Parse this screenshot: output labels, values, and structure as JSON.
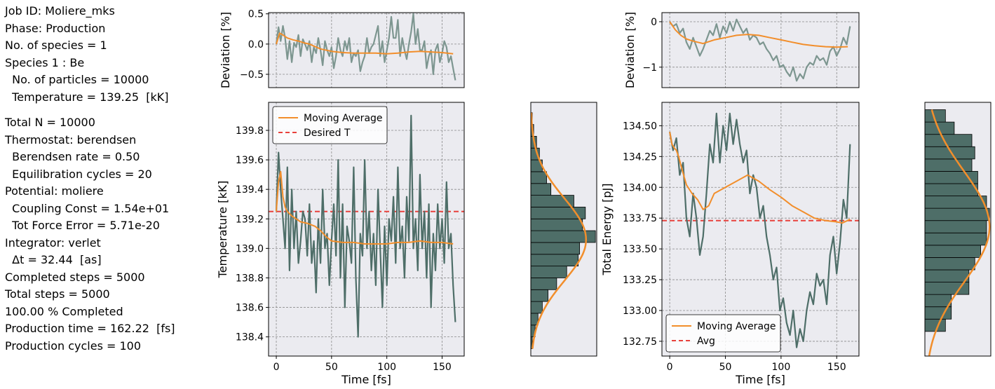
{
  "info_panel": {
    "group1": [
      "Job ID: Moliere_mks",
      "Phase: Production",
      "No. of species = 1",
      "Species 1 : Be",
      "  No. of particles = 10000",
      "  Temperature = 139.25  [kK]"
    ],
    "group2": [
      "Total N = 10000",
      "Thermostat: berendsen",
      "  Berendsen rate = 0.50",
      "  Equilibration cycles = 20",
      "Potential: moliere",
      "  Coupling Const = 1.54e+01",
      "  Tot Force Error = 5.71e-20",
      "Integrator: verlet",
      "  Δt = 32.44  [as]",
      "Completed steps = 5000",
      "Total steps = 5000",
      "100.00 % Completed",
      "Production time = 162.22  [fs]",
      "Production cycles = 100"
    ]
  },
  "colors": {
    "signal": "#4e6e68",
    "deviation_signal": "#7d9690",
    "moving_average": "#f28e2b",
    "reference_line": "#e8413c",
    "panel_background": "#ebebf0",
    "grid": "#8a8a8a"
  },
  "chart_data": [
    {
      "id": "temp_deviation",
      "type": "line",
      "ylabel": "Deviation [%]",
      "xlabel": "",
      "xlim": [
        -7,
        170
      ],
      "ylim": [
        -0.72,
        0.52
      ],
      "yticks": [
        0.5,
        0.0,
        -0.5
      ],
      "ytick_labels": [
        "0.5",
        "0.0",
        "−0.5"
      ],
      "grid": true,
      "series": [
        {
          "role": "signal",
          "x": [
            0,
            2,
            4,
            6,
            8,
            10,
            12,
            14,
            16,
            18,
            20,
            22,
            24,
            26,
            28,
            30,
            32,
            34,
            36,
            38,
            40,
            42,
            44,
            46,
            48,
            50,
            52,
            54,
            56,
            58,
            60,
            62,
            64,
            66,
            68,
            70,
            72,
            74,
            76,
            78,
            80,
            82,
            84,
            86,
            88,
            90,
            92,
            94,
            96,
            98,
            100,
            102,
            104,
            106,
            108,
            110,
            112,
            114,
            116,
            118,
            120,
            122,
            124,
            126,
            128,
            130,
            132,
            134,
            136,
            138,
            140,
            142,
            144,
            146,
            148,
            150,
            152,
            154,
            156,
            158,
            160,
            162
          ],
          "y": [
            0.0,
            0.28,
            0.05,
            0.3,
            0.1,
            -0.25,
            0.05,
            -0.3,
            0.02,
            -0.05,
            0.15,
            -0.2,
            0.08,
            0.0,
            -0.1,
            0.05,
            -0.3,
            -0.05,
            -0.15,
            0.1,
            -0.1,
            -0.35,
            0.05,
            -0.1,
            -0.2,
            -0.05,
            -0.4,
            -0.2,
            0.1,
            -0.1,
            -0.2,
            0.05,
            -0.1,
            0.1,
            -0.3,
            -0.15,
            -0.2,
            -0.1,
            -0.45,
            -0.3,
            -0.2,
            0.1,
            -0.15,
            -0.05,
            0.0,
            0.15,
            0.3,
            -0.2,
            0.05,
            -0.3,
            -0.1,
            0.1,
            0.45,
            0.1,
            0.1,
            0.4,
            -0.2,
            0.1,
            -0.1,
            -0.25,
            0.0,
            0.2,
            0.5,
            0.0,
            0.25,
            -0.1,
            -0.1,
            0.05,
            -0.4,
            -0.2,
            -0.1,
            -0.5,
            -0.1,
            0.0,
            -0.3,
            -0.15,
            0.05,
            -0.05,
            -0.3,
            -0.2,
            -0.4,
            -0.6
          ]
        },
        {
          "role": "moving_average",
          "x": [
            0,
            3,
            6,
            10,
            15,
            20,
            25,
            30,
            40,
            50,
            60,
            70,
            80,
            90,
            100,
            110,
            120,
            130,
            140,
            150,
            160
          ],
          "y": [
            0.0,
            0.18,
            0.15,
            0.1,
            0.07,
            0.05,
            0.02,
            0.0,
            -0.08,
            -0.12,
            -0.14,
            -0.15,
            -0.15,
            -0.15,
            -0.16,
            -0.15,
            -0.13,
            -0.12,
            -0.13,
            -0.14,
            -0.16
          ]
        }
      ]
    },
    {
      "id": "temperature",
      "type": "line",
      "xlabel": "Time [fs]",
      "ylabel": "Temperature [kK]",
      "xlim": [
        -7,
        170
      ],
      "ylim": [
        138.27,
        139.99
      ],
      "xticks": [
        0,
        50,
        100,
        150
      ],
      "yticks": [
        138.4,
        138.6,
        138.8,
        139.0,
        139.2,
        139.4,
        139.6,
        139.8
      ],
      "grid": true,
      "legend": {
        "location": "upper-left",
        "entries": [
          "Moving Average",
          "Desired T"
        ]
      },
      "desired_T": 139.25,
      "series": [
        {
          "role": "signal",
          "x": [
            0,
            2,
            4,
            6,
            8,
            10,
            12,
            14,
            16,
            18,
            20,
            22,
            24,
            26,
            28,
            30,
            32,
            34,
            36,
            38,
            40,
            42,
            44,
            46,
            48,
            50,
            52,
            54,
            56,
            58,
            60,
            62,
            64,
            66,
            68,
            70,
            72,
            74,
            76,
            78,
            80,
            82,
            84,
            86,
            88,
            90,
            92,
            94,
            96,
            98,
            100,
            102,
            104,
            106,
            108,
            110,
            112,
            114,
            116,
            118,
            120,
            122,
            124,
            126,
            128,
            130,
            132,
            134,
            136,
            138,
            140,
            142,
            144,
            146,
            148,
            150,
            152,
            154,
            156,
            158,
            160,
            162
          ],
          "y": [
            139.25,
            139.65,
            139.4,
            139.2,
            139.0,
            139.55,
            138.85,
            139.4,
            139.0,
            139.25,
            138.9,
            139.05,
            139.25,
            139.2,
            138.95,
            139.3,
            138.9,
            139.05,
            138.7,
            139.2,
            138.9,
            139.4,
            139.0,
            139.1,
            138.75,
            139.05,
            139.3,
            138.95,
            139.6,
            138.8,
            139.3,
            138.6,
            139.15,
            139.05,
            138.9,
            139.55,
            138.8,
            138.4,
            139.1,
            138.95,
            139.6,
            139.0,
            139.25,
            138.85,
            139.1,
            138.75,
            139.4,
            139.0,
            138.6,
            139.15,
            138.75,
            139.2,
            139.05,
            139.35,
            138.9,
            139.55,
            139.0,
            139.15,
            138.8,
            139.35,
            139.05,
            139.9,
            139.0,
            139.2,
            138.85,
            139.5,
            139.0,
            139.25,
            138.8,
            139.3,
            138.6,
            139.1,
            138.85,
            139.3,
            139.0,
            139.2,
            138.9,
            139.45,
            139.0,
            139.1,
            138.75,
            138.5
          ]
        },
        {
          "role": "moving_average",
          "x": [
            0,
            2,
            4,
            6,
            8,
            10,
            14,
            18,
            22,
            28,
            35,
            40,
            45,
            50,
            60,
            70,
            80,
            90,
            100,
            110,
            120,
            130,
            140,
            150,
            160
          ],
          "y": [
            139.25,
            139.45,
            139.52,
            139.35,
            139.28,
            139.25,
            139.22,
            139.2,
            139.18,
            139.17,
            139.15,
            139.12,
            139.08,
            139.05,
            139.04,
            139.04,
            139.03,
            139.03,
            139.03,
            139.04,
            139.04,
            139.05,
            139.04,
            139.04,
            139.03
          ]
        }
      ]
    },
    {
      "id": "temperature_histogram",
      "type": "bar",
      "orientation": "horizontal",
      "ylim": [
        138.27,
        139.99
      ],
      "bin_edges": [
        138.32,
        138.4,
        138.48,
        138.56,
        138.64,
        138.72,
        138.8,
        138.88,
        138.96,
        139.04,
        139.12,
        139.2,
        139.28,
        139.36,
        139.44,
        139.52,
        139.6,
        139.68,
        139.76,
        139.84,
        139.92
      ],
      "values": [
        1,
        3,
        5,
        8,
        12,
        18,
        25,
        33,
        34,
        45,
        36,
        38,
        30,
        14,
        11,
        8,
        6,
        4,
        2,
        1
      ],
      "fit": {
        "type": "gaussian",
        "mean": 139.06,
        "std": 0.28,
        "peak": 38.5
      }
    },
    {
      "id": "energy_deviation",
      "type": "line",
      "ylabel": "Deviation [%]",
      "xlabel": "",
      "xlim": [
        -7,
        170
      ],
      "ylim": [
        -1.45,
        0.2
      ],
      "yticks": [
        0,
        -1
      ],
      "ytick_labels": [
        "0",
        "−1"
      ],
      "grid": true,
      "series": [
        {
          "role": "signal",
          "x": [
            0,
            3,
            6,
            9,
            12,
            15,
            18,
            21,
            24,
            27,
            30,
            33,
            36,
            39,
            42,
            45,
            48,
            51,
            54,
            57,
            60,
            63,
            66,
            69,
            72,
            75,
            78,
            81,
            84,
            87,
            90,
            93,
            96,
            99,
            102,
            105,
            108,
            111,
            114,
            117,
            120,
            123,
            126,
            129,
            132,
            135,
            138,
            141,
            144,
            147,
            150,
            153,
            156,
            159,
            162
          ],
          "y": [
            0.0,
            -0.1,
            -0.05,
            -0.25,
            -0.15,
            -0.45,
            -0.6,
            -0.35,
            -0.55,
            -0.75,
            -0.6,
            -0.4,
            -0.2,
            -0.3,
            -0.05,
            -0.35,
            -0.1,
            -0.25,
            0.0,
            -0.2,
            0.05,
            -0.1,
            -0.25,
            -0.15,
            -0.4,
            -0.3,
            -0.35,
            -0.5,
            -0.45,
            -0.6,
            -0.7,
            -0.85,
            -0.75,
            -1.0,
            -0.95,
            -1.1,
            -1.2,
            -1.0,
            -1.3,
            -1.15,
            -1.25,
            -1.0,
            -0.9,
            -0.95,
            -0.75,
            -0.85,
            -0.8,
            -0.95,
            -0.65,
            -0.55,
            -0.75,
            -0.6,
            -0.35,
            -0.5,
            -0.1
          ]
        },
        {
          "role": "moving_average",
          "x": [
            0,
            5,
            10,
            15,
            20,
            25,
            30,
            40,
            50,
            60,
            70,
            80,
            90,
            100,
            110,
            120,
            130,
            140,
            150,
            160
          ],
          "y": [
            0.0,
            -0.18,
            -0.3,
            -0.38,
            -0.42,
            -0.45,
            -0.48,
            -0.4,
            -0.35,
            -0.3,
            -0.28,
            -0.3,
            -0.35,
            -0.4,
            -0.45,
            -0.5,
            -0.53,
            -0.55,
            -0.56,
            -0.55
          ]
        }
      ]
    },
    {
      "id": "total_energy",
      "type": "line",
      "xlabel": "Time [fs]",
      "ylabel": "Total Energy [pJ]",
      "xlim": [
        -7,
        170
      ],
      "ylim": [
        132.63,
        134.69
      ],
      "xticks": [
        0,
        50,
        100,
        150
      ],
      "yticks": [
        132.75,
        133.0,
        133.25,
        133.5,
        133.75,
        134.0,
        134.25,
        134.5
      ],
      "ytick_labels": [
        "132.75",
        "133.00",
        "133.25",
        "133.50",
        "133.75",
        "134.00",
        "134.25",
        "134.50"
      ],
      "grid": true,
      "legend": {
        "location": "lower-left",
        "entries": [
          "Moving Average",
          "Avg"
        ]
      },
      "avg": 133.73,
      "series": [
        {
          "role": "signal",
          "x": [
            0,
            3,
            6,
            9,
            12,
            15,
            18,
            21,
            24,
            27,
            30,
            33,
            36,
            39,
            42,
            45,
            48,
            51,
            54,
            57,
            60,
            63,
            66,
            69,
            72,
            75,
            78,
            81,
            84,
            87,
            90,
            93,
            96,
            99,
            102,
            105,
            108,
            111,
            114,
            117,
            120,
            123,
            126,
            129,
            132,
            135,
            138,
            141,
            144,
            147,
            150,
            153,
            156,
            159,
            162
          ],
          "y": [
            134.45,
            134.3,
            134.4,
            134.1,
            134.2,
            133.75,
            133.6,
            133.95,
            133.75,
            133.45,
            133.6,
            133.95,
            134.35,
            134.2,
            134.6,
            134.2,
            134.5,
            134.3,
            134.6,
            134.35,
            134.55,
            134.35,
            134.2,
            134.3,
            133.95,
            134.1,
            134.0,
            133.75,
            133.85,
            133.6,
            133.45,
            133.25,
            133.35,
            133.0,
            133.1,
            132.9,
            132.8,
            133.0,
            132.7,
            132.85,
            132.75,
            133.0,
            133.15,
            133.05,
            133.3,
            133.2,
            133.25,
            133.05,
            133.45,
            133.6,
            133.3,
            133.55,
            133.9,
            133.75,
            134.35
          ]
        },
        {
          "role": "moving_average",
          "x": [
            0,
            2,
            4,
            6,
            8,
            10,
            15,
            20,
            25,
            30,
            35,
            40,
            50,
            60,
            70,
            80,
            90,
            100,
            110,
            120,
            130,
            140,
            150,
            155,
            162
          ],
          "y": [
            134.45,
            134.35,
            134.32,
            134.3,
            134.25,
            134.18,
            134.02,
            133.95,
            133.9,
            133.82,
            133.85,
            133.95,
            134.0,
            134.05,
            134.1,
            134.05,
            133.98,
            133.92,
            133.85,
            133.8,
            133.75,
            133.73,
            133.72,
            133.71,
            133.74
          ]
        }
      ]
    },
    {
      "id": "energy_histogram",
      "type": "bar",
      "orientation": "horizontal",
      "ylim": [
        132.63,
        134.69
      ],
      "bin_edges": [
        132.63,
        132.73,
        132.83,
        132.93,
        133.03,
        133.13,
        133.23,
        133.33,
        133.43,
        133.53,
        133.63,
        133.73,
        133.83,
        133.93,
        134.03,
        134.13,
        134.23,
        134.33,
        134.43,
        134.53,
        134.63
      ],
      "values": [
        0,
        0,
        7,
        9,
        9,
        15,
        15,
        17,
        19,
        21,
        21,
        22,
        21,
        18,
        18,
        16,
        17,
        16,
        10,
        7
      ],
      "fit": {
        "type": "gaussian",
        "mean": 133.68,
        "std": 0.45,
        "peak": 22
      }
    }
  ]
}
